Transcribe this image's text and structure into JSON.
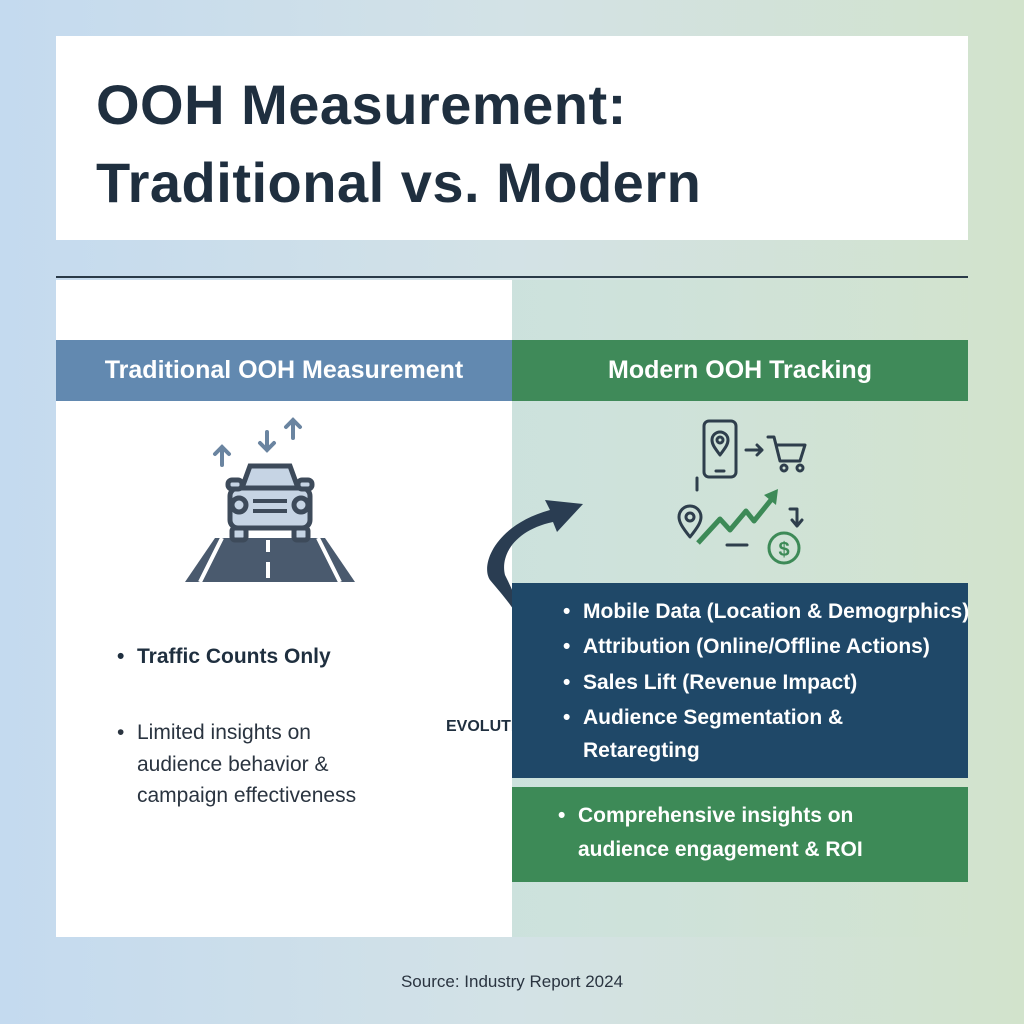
{
  "title": {
    "line1": "OOH Measurement:",
    "line2": "Traditional vs. Modern"
  },
  "traditional": {
    "header": "Traditional OOH Measurement",
    "icon": "car-on-road-icon",
    "bullets": [
      "Traffic Counts Only"
    ],
    "note_lines": [
      "Limited insights on",
      "audience behavior &",
      "campaign effectiveness"
    ]
  },
  "modern": {
    "header": "Modern OOH Tracking",
    "icon": "mobile-data-attribution-icon",
    "bullets": [
      "Mobile Data (Location & Demogrphics)",
      "Attribution (Online/Offline Actions)",
      "Sales Lift (Revenue Impact)",
      "Audience Segmentation &",
      "Retaregting"
    ],
    "summary_lines": [
      "Comprehensive insights on",
      "audience engagement & ROI"
    ]
  },
  "evolution_label": "EVOLUTION",
  "source": "Source: Industry Report 2024",
  "colors": {
    "traditional": "#6289b0",
    "modern": "#3f8a59",
    "dark": "#1f4868",
    "text": "#1f2f3f"
  }
}
